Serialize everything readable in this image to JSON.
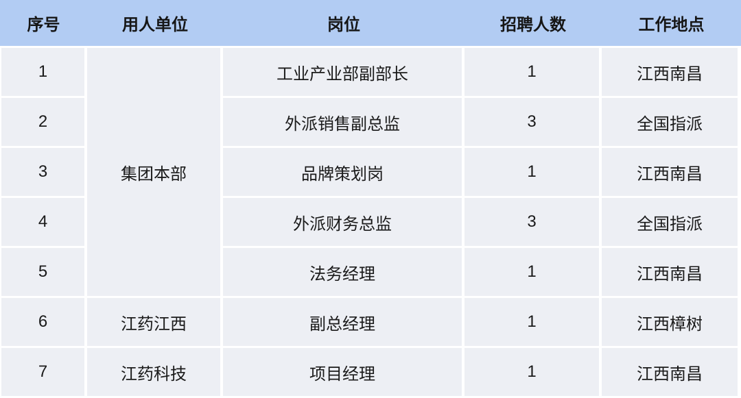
{
  "table": {
    "headers": [
      "序号",
      "用人单位",
      "岗位",
      "招聘人数",
      "工作地点"
    ],
    "rows": [
      {
        "no": "1",
        "employer": "集团本部",
        "position": "工业产业部副部长",
        "count": "1",
        "location": "江西南昌"
      },
      {
        "no": "2",
        "position": "外派销售副总监",
        "count": "3",
        "location": "全国指派"
      },
      {
        "no": "3",
        "position": "品牌策划岗",
        "count": "1",
        "location": "江西南昌"
      },
      {
        "no": "4",
        "position": "外派财务总监",
        "count": "3",
        "location": "全国指派"
      },
      {
        "no": "5",
        "position": "法务经理",
        "count": "1",
        "location": "江西南昌"
      },
      {
        "no": "6",
        "employer": "江药江西",
        "position": "副总经理",
        "count": "1",
        "location": "江西樟树"
      },
      {
        "no": "7",
        "employer": "江药科技",
        "position": "项目经理",
        "count": "1",
        "location": "江西南昌"
      }
    ],
    "merged_employer": {
      "value": "集团本部",
      "spans_rows": "1-5"
    },
    "colors": {
      "header_bg": "#b2ccf3",
      "cell_bg": "#edeff4",
      "grid": "#ffffff",
      "text": "#1a1a1a"
    }
  },
  "chart_data": {
    "type": "table",
    "columns": [
      "序号",
      "用人单位",
      "岗位",
      "招聘人数",
      "工作地点"
    ],
    "rows": [
      [
        "1",
        "集团本部",
        "工业产业部副部长",
        "1",
        "江西南昌"
      ],
      [
        "2",
        "集团本部",
        "外派销售副总监",
        "3",
        "全国指派"
      ],
      [
        "3",
        "集团本部",
        "品牌策划岗",
        "1",
        "江西南昌"
      ],
      [
        "4",
        "集团本部",
        "外派财务总监",
        "3",
        "全国指派"
      ],
      [
        "5",
        "集团本部",
        "法务经理",
        "1",
        "江西南昌"
      ],
      [
        "6",
        "江药江西",
        "副总经理",
        "1",
        "江西樟树"
      ],
      [
        "7",
        "江药科技",
        "项目经理",
        "1",
        "江西南昌"
      ]
    ]
  }
}
